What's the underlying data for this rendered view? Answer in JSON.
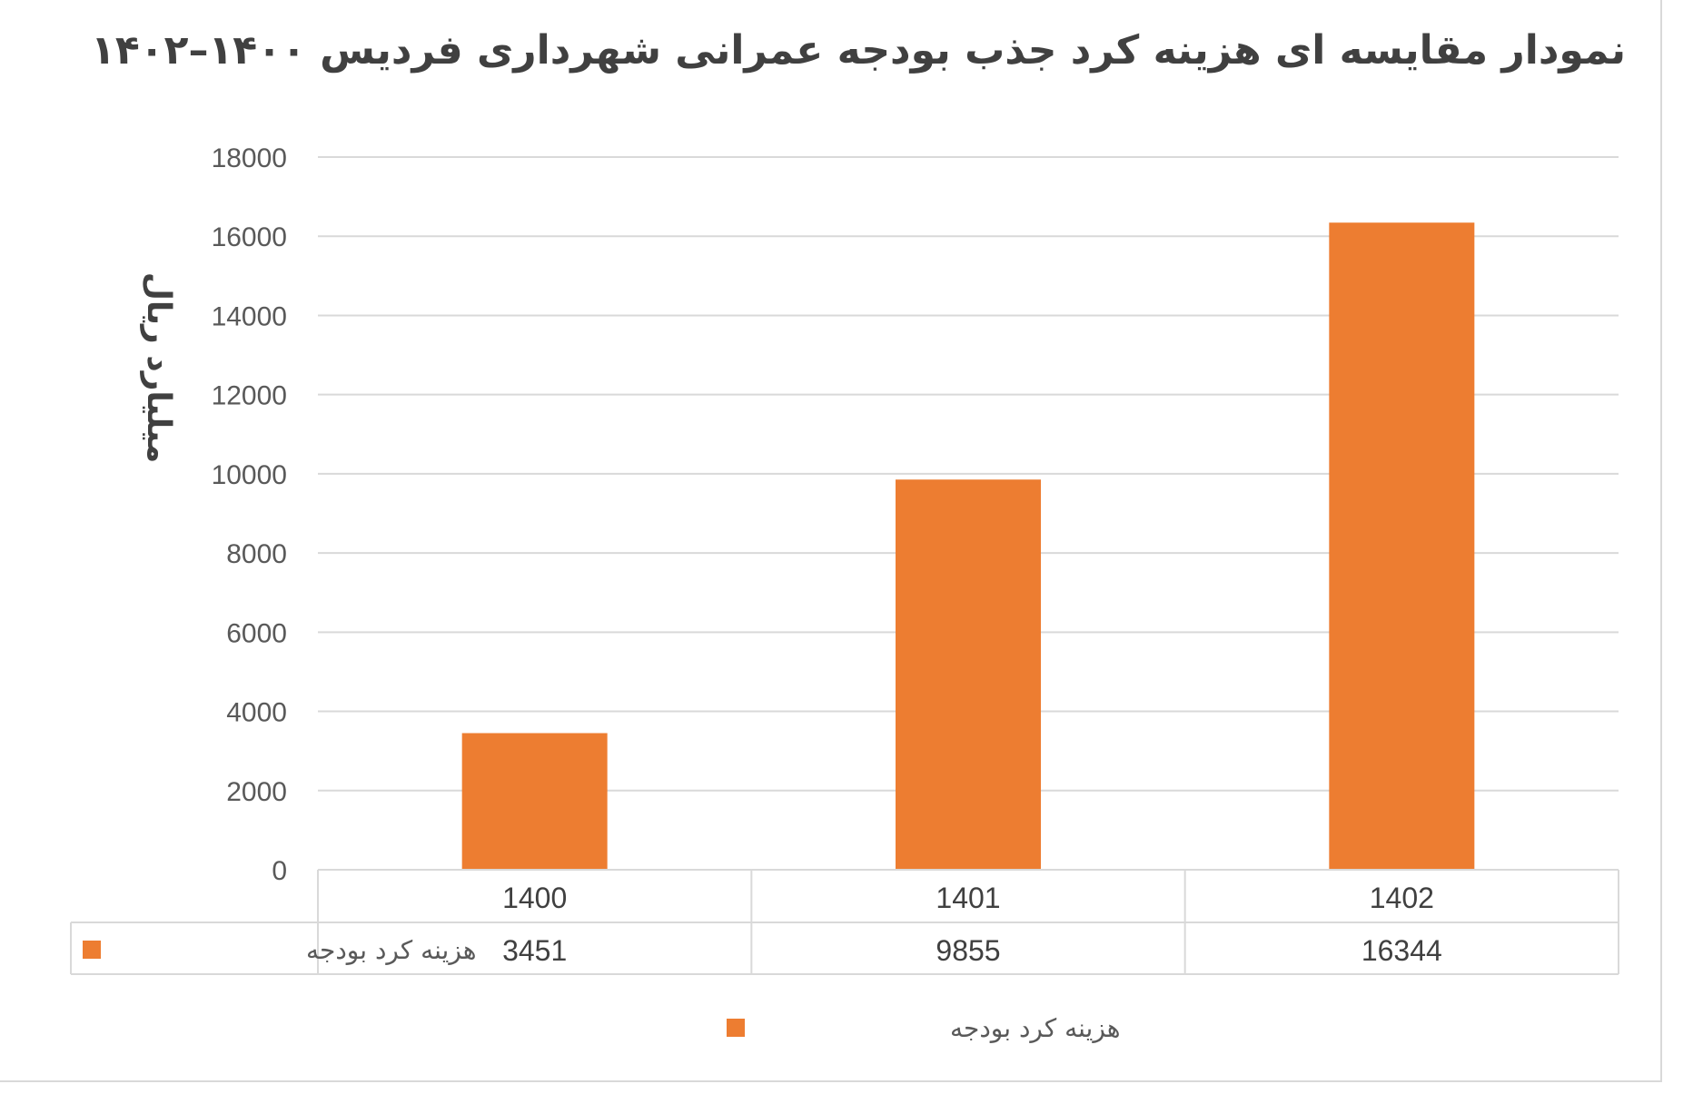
{
  "title": "نمودار مقایسه ای هزینه کرد جذب بودجه عمرانی شهرداری فردیس ۱۴۰۰–۱۴۰۲",
  "chart_data": {
    "type": "bar",
    "title": "نمودار مقایسه ای هزینه کرد جذب بودجه عمرانی شهرداری فردیس ۱۴۰۰–۱۴۰۲",
    "xlabel": "",
    "ylabel": "میلیارد ریال",
    "categories": [
      "1400",
      "1401",
      "1402"
    ],
    "series": [
      {
        "name": "هزینه کرد بودجه",
        "values": [
          3451,
          9855,
          16344
        ],
        "color": "#ED7D31"
      }
    ],
    "ylim": [
      0,
      18000
    ],
    "yticks": [
      "0",
      "2000",
      "4000",
      "6000",
      "8000",
      "10000",
      "12000",
      "14000",
      "16000",
      "18000"
    ],
    "grid": true,
    "data_table": true,
    "legend_position": "bottom"
  }
}
